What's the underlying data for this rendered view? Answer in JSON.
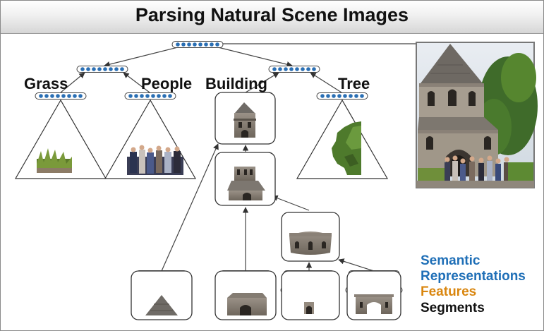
{
  "title": "Parsing Natural Scene Images",
  "labels": {
    "grass": "Grass",
    "people": "People",
    "building": "Building",
    "tree": "Tree"
  },
  "legend": {
    "semantic_line1": "Semantic",
    "semantic_line2": "Representations",
    "features": "Features",
    "segments": "Segments"
  },
  "colors": {
    "semantic": "#1f6fb7",
    "features": "#d9860f",
    "segments": "#111111",
    "node_dot_blue": "#2a6fb4",
    "node_dot_orange": "#e08a14"
  },
  "icons": {
    "photo": "church-scene-photo",
    "grass_patch": "grass-segment-icon",
    "people_group": "people-segment-icon",
    "tree_part": "tree-segment-icon"
  }
}
